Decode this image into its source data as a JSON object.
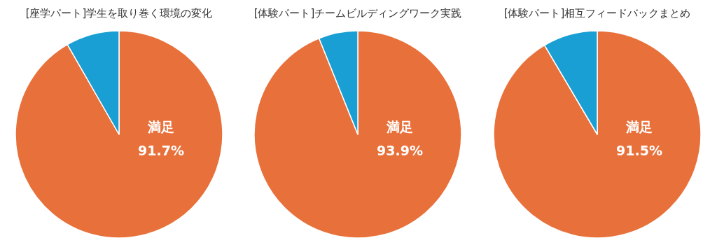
{
  "chart_data": [
    {
      "type": "pie",
      "title": "[座学パート]学生を取り巻く環境の変化",
      "categories": [
        "満足",
        null
      ],
      "values": [
        91.7,
        8.3
      ],
      "colors": [
        "#e8703a",
        "#1a9fd4"
      ],
      "value_labels": [
        "91.7%",
        null
      ]
    },
    {
      "type": "pie",
      "title": "[体験パート]チームビルディングワーク実践",
      "categories": [
        "満足",
        null
      ],
      "values": [
        93.9,
        6.1
      ],
      "colors": [
        "#e8703a",
        "#1a9fd4"
      ],
      "value_labels": [
        "93.9%",
        null
      ]
    },
    {
      "type": "pie",
      "title": "[体験パート]相互フィードバックまとめ",
      "categories": [
        "満足",
        null
      ],
      "values": [
        91.5,
        8.5
      ],
      "colors": [
        "#e8703a",
        "#1a9fd4"
      ],
      "value_labels": [
        "91.5%",
        null
      ]
    }
  ]
}
